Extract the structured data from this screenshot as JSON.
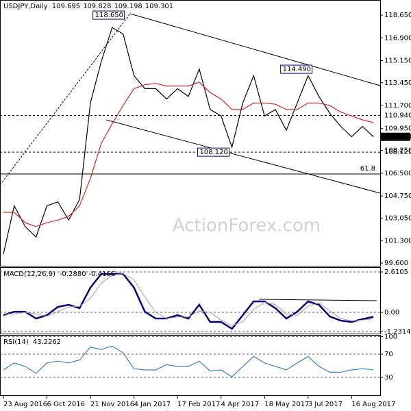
{
  "chart_data": [
    {
      "type": "line",
      "title": "USDJPY,Daily",
      "ohlc": [
        109.695,
        109.828,
        109.198,
        109.301
      ],
      "watermark": "ActionForex.com",
      "x": [
        0,
        8,
        16,
        24,
        32,
        40,
        48,
        56,
        64,
        72,
        80,
        88,
        96,
        104,
        112,
        120,
        128,
        136,
        144,
        152,
        160,
        168,
        176,
        184,
        192,
        200,
        208,
        216,
        224,
        232,
        240,
        248,
        256,
        264,
        272
      ],
      "xlim": [
        -2.5,
        277
      ],
      "ylim": [
        99.39,
        119.81
      ],
      "yticks": [
        {
          "value": 118.65,
          "label": "118.650"
        },
        {
          "value": 116.9,
          "label": "116.900"
        },
        {
          "value": 115.15,
          "label": "115.150"
        },
        {
          "value": 113.45,
          "label": "113.450"
        },
        {
          "value": 111.7,
          "label": "111.700"
        },
        {
          "value": 109.95,
          "label": "109.950"
        },
        {
          "value": 108.25,
          "label": "108.250"
        },
        {
          "value": 106.5,
          "label": "106.500"
        },
        {
          "value": 104.75,
          "label": "104.750"
        },
        {
          "value": 103.05,
          "label": "103.050"
        },
        {
          "value": 101.3,
          "label": "101.300"
        },
        {
          "value": 99.6,
          "label": "99.600"
        }
      ],
      "grid": false,
      "series": [
        {
          "color": "#000000",
          "values": [
            100.3,
            104.0,
            102.4,
            101.6,
            104.0,
            104.3,
            102.9,
            104.5,
            111.9,
            115.1,
            117.7,
            117.2,
            114.0,
            113.0,
            113.0,
            112.2,
            113.0,
            112.4,
            114.5,
            111.4,
            110.9,
            108.5,
            111.9,
            114.0,
            110.9,
            111.4,
            109.8,
            111.9,
            114.0,
            112.4,
            111.1,
            110.1,
            109.3,
            110.1,
            109.301
          ]
        },
        {
          "color": "#e02020",
          "values": [
            103.5,
            103.5,
            102.7,
            102.4,
            102.7,
            102.9,
            103.2,
            104.0,
            106.1,
            108.8,
            110.3,
            111.7,
            113.0,
            113.3,
            113.4,
            113.2,
            113.2,
            113.2,
            113.5,
            112.7,
            112.2,
            111.4,
            111.4,
            111.9,
            111.9,
            111.8,
            111.4,
            111.4,
            111.9,
            111.9,
            111.7,
            111.2,
            110.9,
            110.6,
            110.4
          ]
        }
      ],
      "peak_labels": [
        {
          "value": 118.65,
          "label": "118.650",
          "x": 92
        },
        {
          "value": 114.49,
          "label": "114.490",
          "x": 230
        },
        {
          "value": 108.12,
          "label": "108.120",
          "x": 169
        }
      ],
      "levels": [
        {
          "value": 110.94,
          "label": "110.940",
          "dashed": true
        },
        {
          "value": 109.301,
          "label": "109.301",
          "highlight": true
        },
        {
          "value": 108.12,
          "label": "108.120",
          "dashed": true
        }
      ],
      "fib_label": "61.8"
    },
    {
      "type": "line",
      "title": "MACD(12,26,9)",
      "readout": [
        {
          "value": -0.288,
          "label": "-0.2880"
        },
        -0.4166
      ],
      "x": [
        0,
        8,
        16,
        24,
        32,
        40,
        48,
        56,
        64,
        72,
        80,
        88,
        96,
        104,
        112,
        120,
        128,
        136,
        144,
        152,
        160,
        168,
        176,
        184,
        192,
        200,
        208,
        216,
        224,
        232,
        240,
        248,
        256,
        264,
        272
      ],
      "xlim": [
        -2.5,
        277
      ],
      "ylim": [
        -1.416,
        2.876
      ],
      "yticks": [
        2.6105,
        {
          "value": 0,
          "label": "0.00"
        },
        -1.2314
      ],
      "grid": true,
      "series": [
        {
          "color": "#000080",
          "width": 2.5,
          "values": [
            -0.18,
            0.04,
            0.04,
            -0.4,
            -0.18,
            0.35,
            0.49,
            0.27,
            1.6,
            2.48,
            2.48,
            2.48,
            1.6,
            0.04,
            -0.4,
            -0.4,
            -0.18,
            -0.4,
            0.49,
            -0.62,
            -0.62,
            -1.06,
            -0.18,
            0.71,
            0.71,
            0.27,
            -0.4,
            0.04,
            0.71,
            0.49,
            -0.27,
            -0.53,
            -0.62,
            -0.44,
            -0.288
          ]
        },
        {
          "color": "#a0a0a0",
          "width": 1,
          "values": [
            -0.1,
            -0.1,
            0.0,
            -0.1,
            -0.25,
            0.05,
            0.35,
            0.4,
            0.9,
            1.9,
            2.4,
            2.5,
            2.1,
            1.0,
            0.0,
            -0.4,
            -0.3,
            -0.3,
            0.1,
            0.0,
            -0.5,
            -0.85,
            -0.6,
            0.2,
            0.65,
            0.5,
            -0.1,
            -0.2,
            0.4,
            0.6,
            0.1,
            -0.4,
            -0.55,
            -0.5,
            -0.4166
          ]
        }
      ]
    },
    {
      "type": "line",
      "title": "RSI(14)",
      "readout": [
        43.2262
      ],
      "x": [
        0,
        8,
        16,
        24,
        32,
        40,
        48,
        56,
        64,
        72,
        80,
        88,
        96,
        104,
        112,
        120,
        128,
        136,
        144,
        152,
        160,
        168,
        176,
        184,
        192,
        200,
        208,
        216,
        224,
        232,
        240,
        248,
        256,
        264,
        272
      ],
      "xlim": [
        -2.5,
        277
      ],
      "ylim": [
        -1.76,
        101.8
      ],
      "yticks": [
        100,
        70,
        30
      ],
      "grid": true,
      "xticks": [
        {
          "value": 0,
          "label": "23 Aug 2016"
        },
        {
          "value": 32,
          "label": "6 Oct 2016"
        },
        {
          "value": 64,
          "label": "21 Nov 2016"
        },
        {
          "value": 96,
          "label": "4 Jan 2017"
        },
        {
          "value": 128,
          "label": "17 Feb 2017"
        },
        {
          "value": 160,
          "label": "4 Apr 2017"
        },
        {
          "value": 192,
          "label": "18 May 2017"
        },
        {
          "value": 224,
          "label": "3 Jul 2017"
        },
        {
          "value": 256,
          "label": "16 Aug 2017"
        }
      ],
      "series": [
        {
          "color": "#3a7fd0",
          "values": [
            43,
            55,
            49,
            37,
            55,
            58,
            55,
            60,
            82,
            78,
            84,
            72,
            45,
            43,
            43,
            52,
            49,
            49,
            58,
            41,
            43,
            31,
            49,
            66,
            55,
            49,
            43,
            55,
            66,
            49,
            39,
            39,
            43,
            45,
            43.2262
          ]
        }
      ]
    }
  ]
}
